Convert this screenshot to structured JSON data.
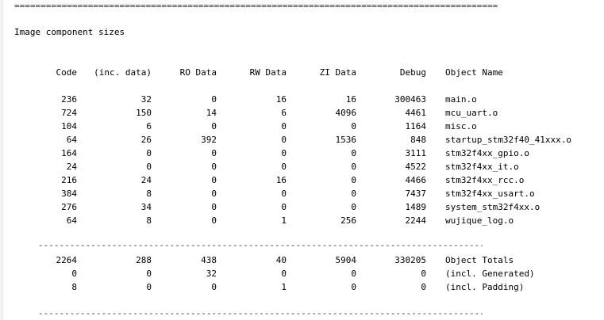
{
  "separators": {
    "top": "============================================================================================",
    "mid": "---------------------------------------------------------------------------------------------",
    "bottom": "---------------------------------------------------------------------------------------------"
  },
  "title": "Image component sizes",
  "headers": {
    "code": "Code",
    "inc_data": "(inc. data)",
    "ro": "RO Data",
    "rw": "RW Data",
    "zi": "ZI Data",
    "debug": "Debug",
    "name": "Object Name"
  },
  "rows": [
    {
      "code": "236",
      "inc": "32",
      "ro": "0",
      "rw": "16",
      "zi": "16",
      "debug": "300463",
      "name": "main.o"
    },
    {
      "code": "724",
      "inc": "150",
      "ro": "14",
      "rw": "6",
      "zi": "4096",
      "debug": "4461",
      "name": "mcu_uart.o"
    },
    {
      "code": "104",
      "inc": "6",
      "ro": "0",
      "rw": "0",
      "zi": "0",
      "debug": "1164",
      "name": "misc.o"
    },
    {
      "code": "64",
      "inc": "26",
      "ro": "392",
      "rw": "0",
      "zi": "1536",
      "debug": "848",
      "name": "startup_stm32f40_41xxx.o"
    },
    {
      "code": "164",
      "inc": "0",
      "ro": "0",
      "rw": "0",
      "zi": "0",
      "debug": "3111",
      "name": "stm32f4xx_gpio.o"
    },
    {
      "code": "24",
      "inc": "0",
      "ro": "0",
      "rw": "0",
      "zi": "0",
      "debug": "4522",
      "name": "stm32f4xx_it.o"
    },
    {
      "code": "216",
      "inc": "24",
      "ro": "0",
      "rw": "16",
      "zi": "0",
      "debug": "4466",
      "name": "stm32f4xx_rcc.o"
    },
    {
      "code": "384",
      "inc": "8",
      "ro": "0",
      "rw": "0",
      "zi": "0",
      "debug": "7437",
      "name": "stm32f4xx_usart.o"
    },
    {
      "code": "276",
      "inc": "34",
      "ro": "0",
      "rw": "0",
      "zi": "0",
      "debug": "1489",
      "name": "system_stm32f4xx.o"
    },
    {
      "code": "64",
      "inc": "8",
      "ro": "0",
      "rw": "1",
      "zi": "256",
      "debug": "2244",
      "name": "wujique_log.o"
    }
  ],
  "totals": [
    {
      "code": "2264",
      "inc": "288",
      "ro": "438",
      "rw": "40",
      "zi": "5904",
      "debug": "330205",
      "name": "Object Totals"
    },
    {
      "code": "0",
      "inc": "0",
      "ro": "32",
      "rw": "0",
      "zi": "0",
      "debug": "0",
      "name": "(incl. Generated)"
    },
    {
      "code": "8",
      "inc": "0",
      "ro": "0",
      "rw": "1",
      "zi": "0",
      "debug": "0",
      "name": "(incl. Padding)"
    }
  ]
}
